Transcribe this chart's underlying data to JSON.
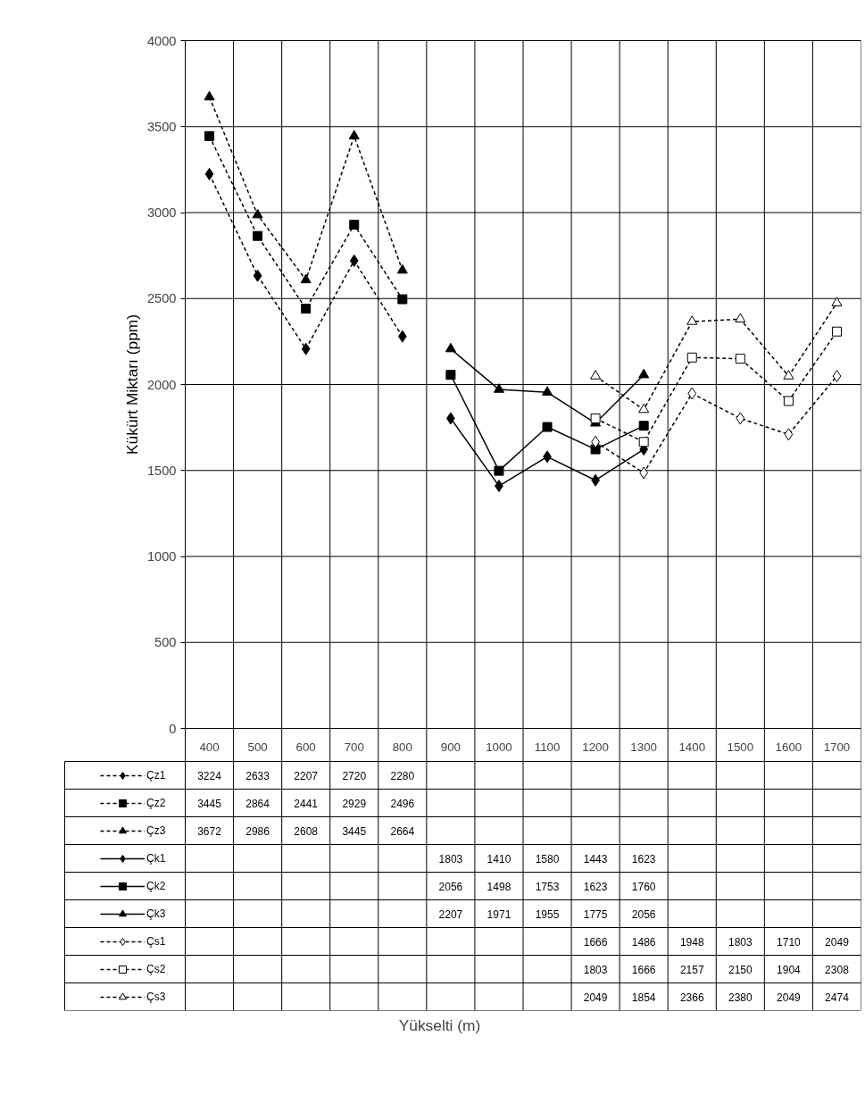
{
  "chart_data": {
    "type": "line",
    "annotations": [
      "Yükselti (m)"
    ],
    "ylabel": "Kükürt Miktarı (ppm)",
    "categories": [
      "400",
      "500",
      "600",
      "700",
      "800",
      "900",
      "1000",
      "1100",
      "1200",
      "1300",
      "1400",
      "1500",
      "1600",
      "1700"
    ],
    "ylim": [
      0,
      4000
    ],
    "yticks": [
      0,
      500,
      1000,
      1500,
      2000,
      2500,
      3000,
      3500,
      4000
    ],
    "grid": true,
    "legend": "bottom",
    "data_labels": true,
    "series": [
      {
        "name": "Çz1",
        "color": "#000000",
        "marker": "diamond",
        "line_style": "dashed",
        "values": [
          3224,
          2633,
          2207,
          2720,
          2280,
          null,
          null,
          null,
          null,
          null,
          null,
          null,
          null,
          null
        ]
      },
      {
        "name": "Çz2",
        "color": "#000000",
        "marker": "square",
        "line_style": "dashed",
        "values": [
          3445,
          2864,
          2441,
          2929,
          2496,
          null,
          null,
          null,
          null,
          null,
          null,
          null,
          null,
          null
        ]
      },
      {
        "name": "Çz3",
        "color": "#000000",
        "marker": "triangle",
        "line_style": "dashed",
        "values": [
          3672,
          2986,
          2608,
          3445,
          2664,
          null,
          null,
          null,
          null,
          null,
          null,
          null,
          null,
          null
        ]
      },
      {
        "name": "Çk1",
        "color": "#000000",
        "marker": "diamond",
        "line_style": "solid",
        "values": [
          null,
          null,
          null,
          null,
          null,
          1803,
          1410,
          1580,
          1443,
          1623,
          null,
          null,
          null,
          null
        ]
      },
      {
        "name": "Çk2",
        "color": "#000000",
        "marker": "square",
        "line_style": "solid",
        "values": [
          null,
          null,
          null,
          null,
          null,
          2056,
          1498,
          1753,
          1623,
          1760,
          null,
          null,
          null,
          null
        ]
      },
      {
        "name": "Çk3",
        "color": "#000000",
        "marker": "triangle",
        "line_style": "solid",
        "values": [
          null,
          null,
          null,
          null,
          null,
          2207,
          1971,
          1955,
          1775,
          2056,
          null,
          null,
          null,
          null
        ]
      },
      {
        "name": "Çs1",
        "color": "#000000",
        "marker": "diamond_open",
        "line_style": "dashed",
        "values": [
          null,
          null,
          null,
          null,
          null,
          null,
          null,
          null,
          1666,
          1486,
          1948,
          1803,
          1710,
          2049
        ]
      },
      {
        "name": "Çs2",
        "color": "#000000",
        "marker": "square_open",
        "line_style": "dashed",
        "values": [
          null,
          null,
          null,
          null,
          null,
          null,
          null,
          null,
          1803,
          1666,
          2157,
          2150,
          1904,
          2308
        ]
      },
      {
        "name": "Çs3",
        "color": "#000000",
        "marker": "triangle_open",
        "line_style": "dashed",
        "values": [
          null,
          null,
          null,
          null,
          null,
          null,
          null,
          null,
          2049,
          1854,
          2366,
          2380,
          2049,
          2474
        ]
      }
    ]
  }
}
